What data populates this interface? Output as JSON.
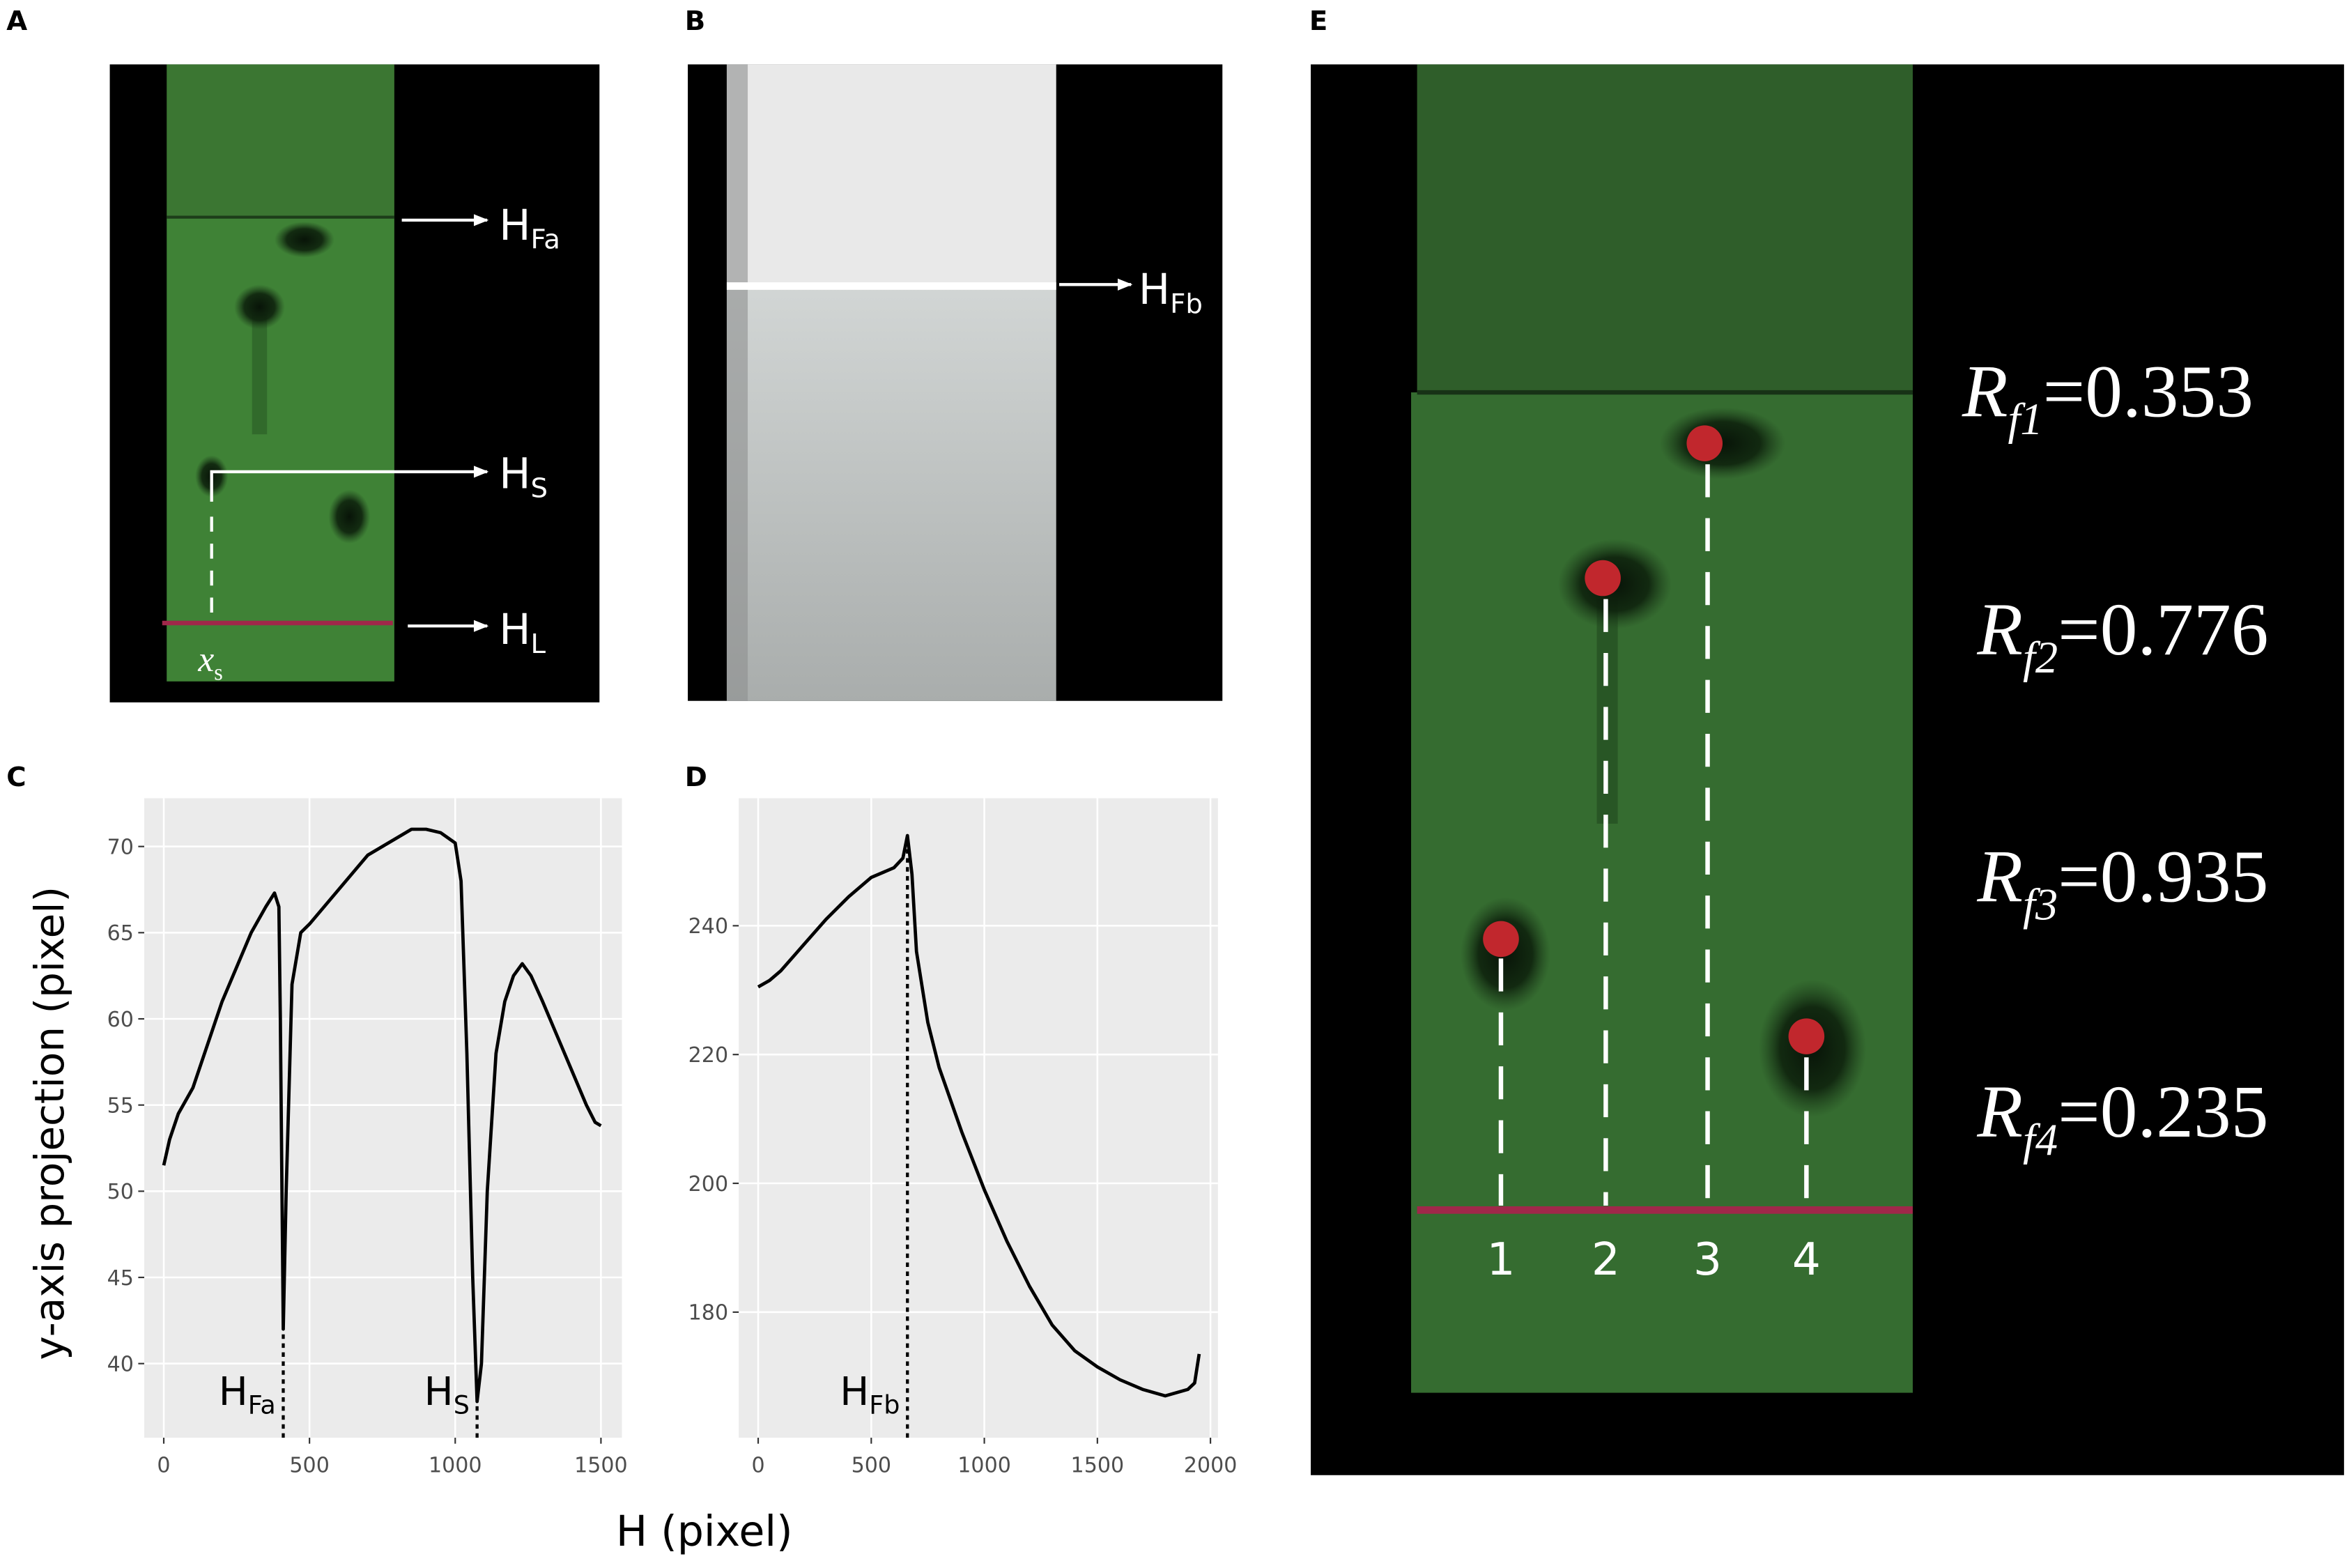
{
  "panel_labels": [
    "A",
    "B",
    "C",
    "D",
    "E"
  ],
  "photo_a": {
    "labels": [
      {
        "main": "H",
        "sub": "Fa"
      },
      {
        "main": "H",
        "sub": "S"
      },
      {
        "main": "H",
        "sub": "L"
      }
    ],
    "start_label": {
      "main": "x",
      "sub": "s"
    }
  },
  "photo_b": {
    "label": {
      "main": "H",
      "sub": "Fb"
    }
  },
  "photo_e": {
    "lanes": [
      "1",
      "2",
      "3",
      "4"
    ],
    "rf": [
      {
        "symbol": "R",
        "sub": "f1",
        "text": "=0.353"
      },
      {
        "symbol": "R",
        "sub": "f2",
        "text": "=0.776"
      },
      {
        "symbol": "R",
        "sub": "f3",
        "text": "=0.935"
      },
      {
        "symbol": "R",
        "sub": "f4",
        "text": "=0.235"
      }
    ]
  },
  "shared_axis_labels": {
    "y": "y-axis projection (pixel)",
    "x": "H (pixel)"
  },
  "chart_data": [
    {
      "type": "line",
      "color": "#000000",
      "x": [
        0,
        20,
        50,
        100,
        150,
        200,
        250,
        300,
        350,
        380,
        395,
        400,
        410,
        420,
        440,
        470,
        500,
        550,
        600,
        650,
        700,
        750,
        800,
        850,
        900,
        950,
        1000,
        1020,
        1040,
        1060,
        1075,
        1090,
        1110,
        1140,
        1170,
        1200,
        1230,
        1260,
        1300,
        1350,
        1400,
        1450,
        1480,
        1500
      ],
      "values": [
        51.5,
        53,
        54.5,
        56,
        58.5,
        61,
        63,
        65,
        66.5,
        67.3,
        66.5,
        60,
        42,
        50,
        62,
        65,
        65.5,
        66.5,
        67.5,
        68.5,
        69.5,
        70,
        70.5,
        71,
        71,
        70.8,
        70.2,
        68,
        58,
        45,
        37.8,
        40,
        50,
        58,
        61,
        62.5,
        63.2,
        62.5,
        61,
        59,
        57,
        55,
        54,
        53.8
      ],
      "xlim": [
        -67,
        1572
      ],
      "ylim": [
        35.7,
        72.8
      ],
      "xticks": [
        0,
        500,
        1000,
        1500
      ],
      "yticks": [
        40,
        45,
        50,
        55,
        60,
        65,
        70
      ],
      "grid": true,
      "annotations": [
        {
          "x": 410,
          "label": "H",
          "sub": "Fa"
        },
        {
          "x": 1075,
          "label": "H",
          "sub": "S"
        }
      ]
    },
    {
      "type": "line",
      "color": "#000000",
      "x": [
        0,
        50,
        100,
        200,
        300,
        400,
        500,
        600,
        640,
        660,
        680,
        700,
        750,
        800,
        900,
        1000,
        1100,
        1200,
        1300,
        1400,
        1500,
        1600,
        1700,
        1800,
        1900,
        1930,
        1950
      ],
      "values": [
        230.5,
        231.5,
        233,
        237,
        241,
        244.5,
        247.5,
        249,
        250.5,
        254,
        248,
        236,
        225,
        218,
        208,
        199,
        191,
        184,
        178,
        174,
        171.5,
        169.5,
        168,
        167,
        168,
        169,
        173.5
      ],
      "xlim": [
        -86,
        2033
      ],
      "ylim": [
        160.5,
        259.8
      ],
      "xticks": [
        0,
        500,
        1000,
        1500,
        2000
      ],
      "yticks": [
        180,
        200,
        220,
        240
      ],
      "grid": true,
      "annotations": [
        {
          "x": 660,
          "label": "H",
          "sub": "Fb"
        }
      ]
    }
  ]
}
